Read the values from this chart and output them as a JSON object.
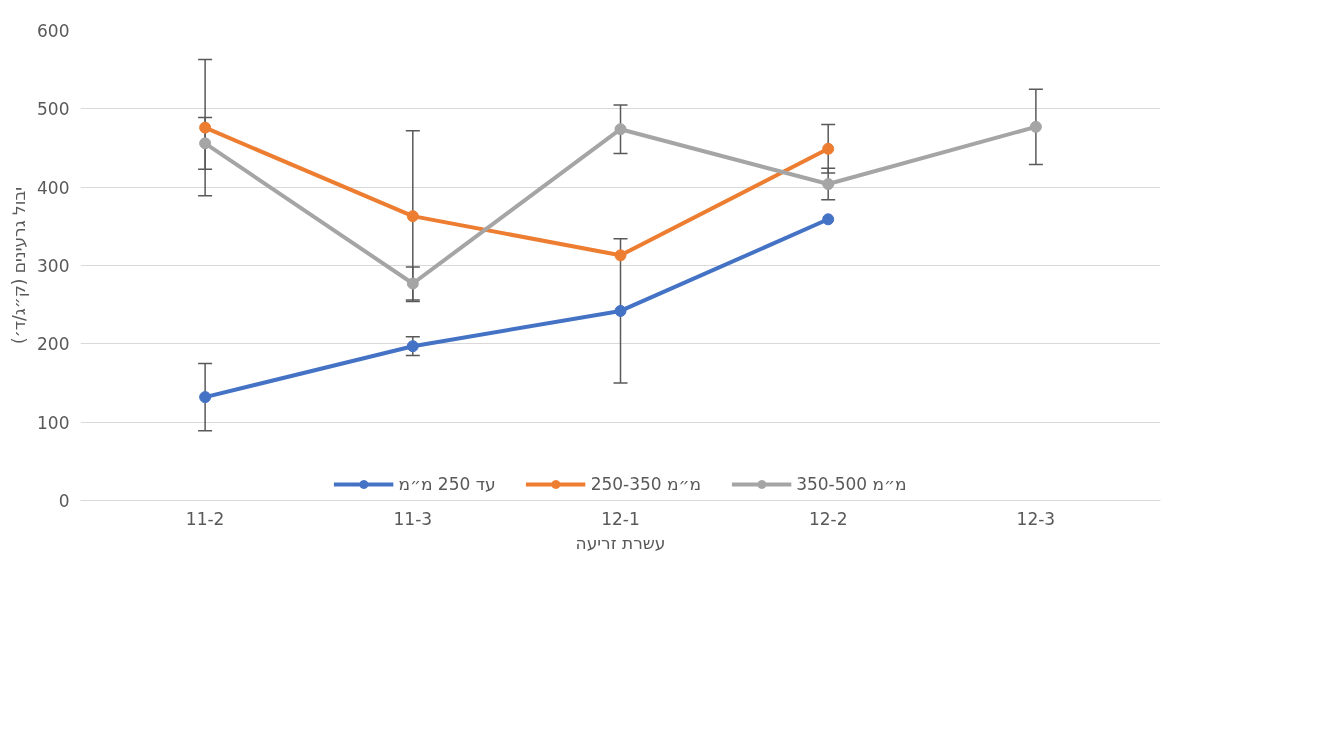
{
  "chart_data": {
    "type": "line",
    "xlabel": "עשרת זריעה",
    "ylabel": "יבול גרעינים (ק״ג/ד׳)",
    "categories": [
      "11-2",
      "11-3",
      "12-1",
      "12-2",
      "12-3"
    ],
    "series": [
      {
        "name": "עד 250 מ״מ",
        "color": "#4472c4",
        "values": [
          132,
          197,
          242,
          359,
          null
        ],
        "errors": [
          43,
          12,
          92,
          null,
          null
        ]
      },
      {
        "name": "250-350 מ״מ",
        "color": "#ed7d31",
        "values": [
          476,
          363,
          313,
          449,
          null
        ],
        "errors": [
          87,
          109,
          null,
          31,
          null
        ]
      },
      {
        "name": "350-500 מ״מ",
        "color": "#a5a5a5",
        "values": [
          456,
          277,
          474,
          404,
          477
        ],
        "errors": [
          33,
          21,
          31,
          20,
          48
        ]
      }
    ],
    "ylim": [
      0,
      600
    ],
    "yticks": [
      0,
      100,
      200,
      300,
      400,
      500,
      600
    ],
    "grid": "y",
    "legend": "bottom",
    "marker": "circle",
    "line_style": "solid"
  }
}
